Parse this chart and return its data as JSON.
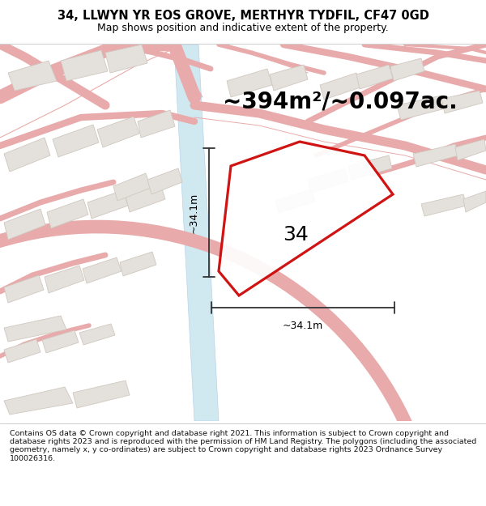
{
  "title": "34, LLWYN YR EOS GROVE, MERTHYR TYDFIL, CF47 0GD",
  "subtitle": "Map shows position and indicative extent of the property.",
  "area_text": "~394m²/~0.097ac.",
  "label_34": "34",
  "dim_vertical": "~34.1m",
  "dim_horizontal": "~34.1m",
  "footer": "Contains OS data © Crown copyright and database right 2021. This information is subject to Crown copyright and database rights 2023 and is reproduced with the permission of HM Land Registry. The polygons (including the associated geometry, namely x, y co-ordinates) are subject to Crown copyright and database rights 2023 Ordnance Survey 100026316.",
  "bg_color": "#ffffff",
  "map_bg": "#f5f3f0",
  "plot_color": "#cc0000",
  "plot_lw": 2.0,
  "figsize": [
    6.0,
    6.25
  ],
  "dpi": 100,
  "title_fontsize": 10.5,
  "subtitle_fontsize": 9,
  "area_fontsize": 20,
  "label_fontsize": 18,
  "dim_fontsize": 9,
  "footer_fontsize": 6.8
}
